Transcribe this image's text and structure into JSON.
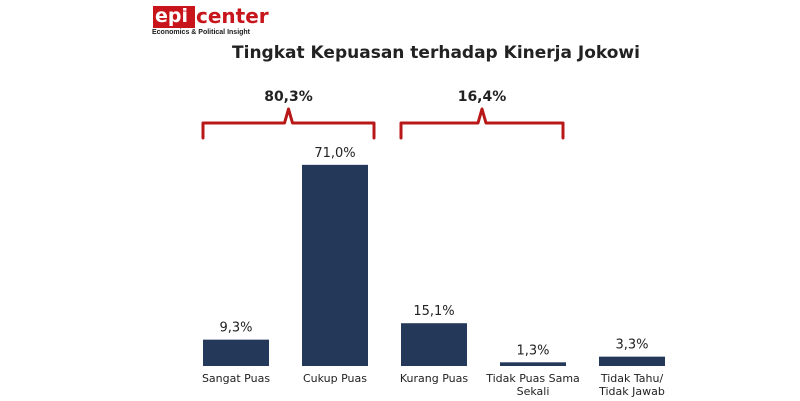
{
  "logo": {
    "brand_left": "epi",
    "brand_right": "center",
    "tagline": "Economics & Political Insight"
  },
  "colors": {
    "bar": "#24385a",
    "bracket": "#b81818",
    "text": "#222222"
  },
  "chart_data": {
    "type": "bar",
    "title": "Tingkat Kepuasan terhadap Kinerja Jokowi",
    "categories": [
      "Sangat Puas",
      "Cukup Puas",
      "Kurang Puas",
      "Tidak Puas Sama Sekali",
      "Tidak Tahu/ Tidak Jawab"
    ],
    "category_lines": [
      [
        "Sangat Puas"
      ],
      [
        "Cukup Puas"
      ],
      [
        "Kurang Puas"
      ],
      [
        "Tidak Puas Sama",
        "Sekali"
      ],
      [
        "Tidak Tahu/",
        "Tidak Jawab"
      ]
    ],
    "values": [
      9.3,
      71.0,
      15.1,
      1.3,
      3.3
    ],
    "value_labels": [
      "9,3%",
      "71,0%",
      "15,1%",
      "1,3%",
      "3,3%"
    ],
    "ylim": [
      0,
      72
    ],
    "grid": false,
    "group_brackets": [
      {
        "label": "80,3%",
        "from_index": 0,
        "to_index": 1
      },
      {
        "label": "16,4%",
        "from_index": 2,
        "to_index": 3
      }
    ]
  }
}
